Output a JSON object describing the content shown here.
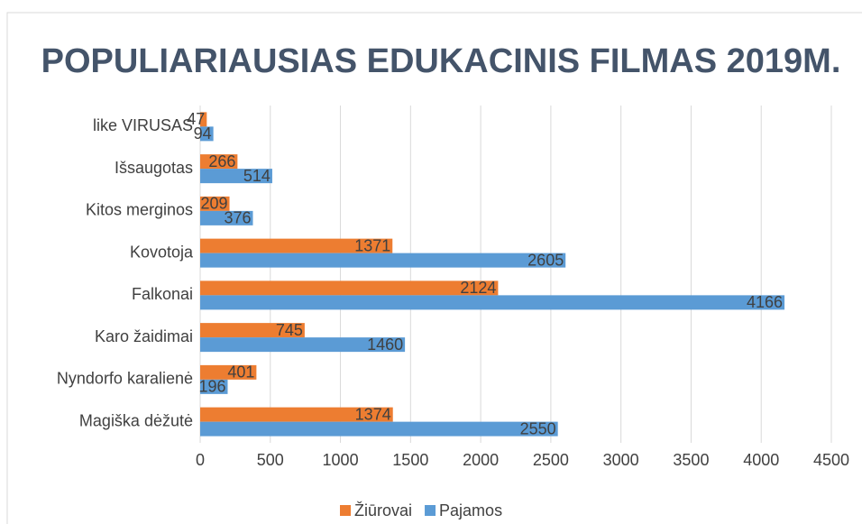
{
  "chart_data": {
    "type": "barh",
    "title": "POPULIARIAUSIAS EDUKACINIS FILMAS 2019M.",
    "categories": [
      "like VIRUSAS",
      "Išsaugotas",
      "Kitos merginos",
      "Kovotoja",
      "Falkonai",
      "Karo žaidimai",
      "Nyndorfo karalienė",
      "Magiška dėžutė"
    ],
    "series": [
      {
        "name": "Žiūrovai",
        "color": "#ed7d31",
        "values": [
          47,
          266,
          209,
          1371,
          2124,
          745,
          401,
          1374
        ]
      },
      {
        "name": "Pajamos",
        "color": "#5b9bd5",
        "values": [
          94,
          514,
          376,
          2605,
          4166,
          1460,
          196,
          2550
        ]
      }
    ],
    "xlim": [
      0,
      4500
    ],
    "xticks": [
      0,
      500,
      1000,
      1500,
      2000,
      2500,
      3000,
      3500,
      4000,
      4500
    ],
    "grid": true,
    "legend": "bottom"
  }
}
